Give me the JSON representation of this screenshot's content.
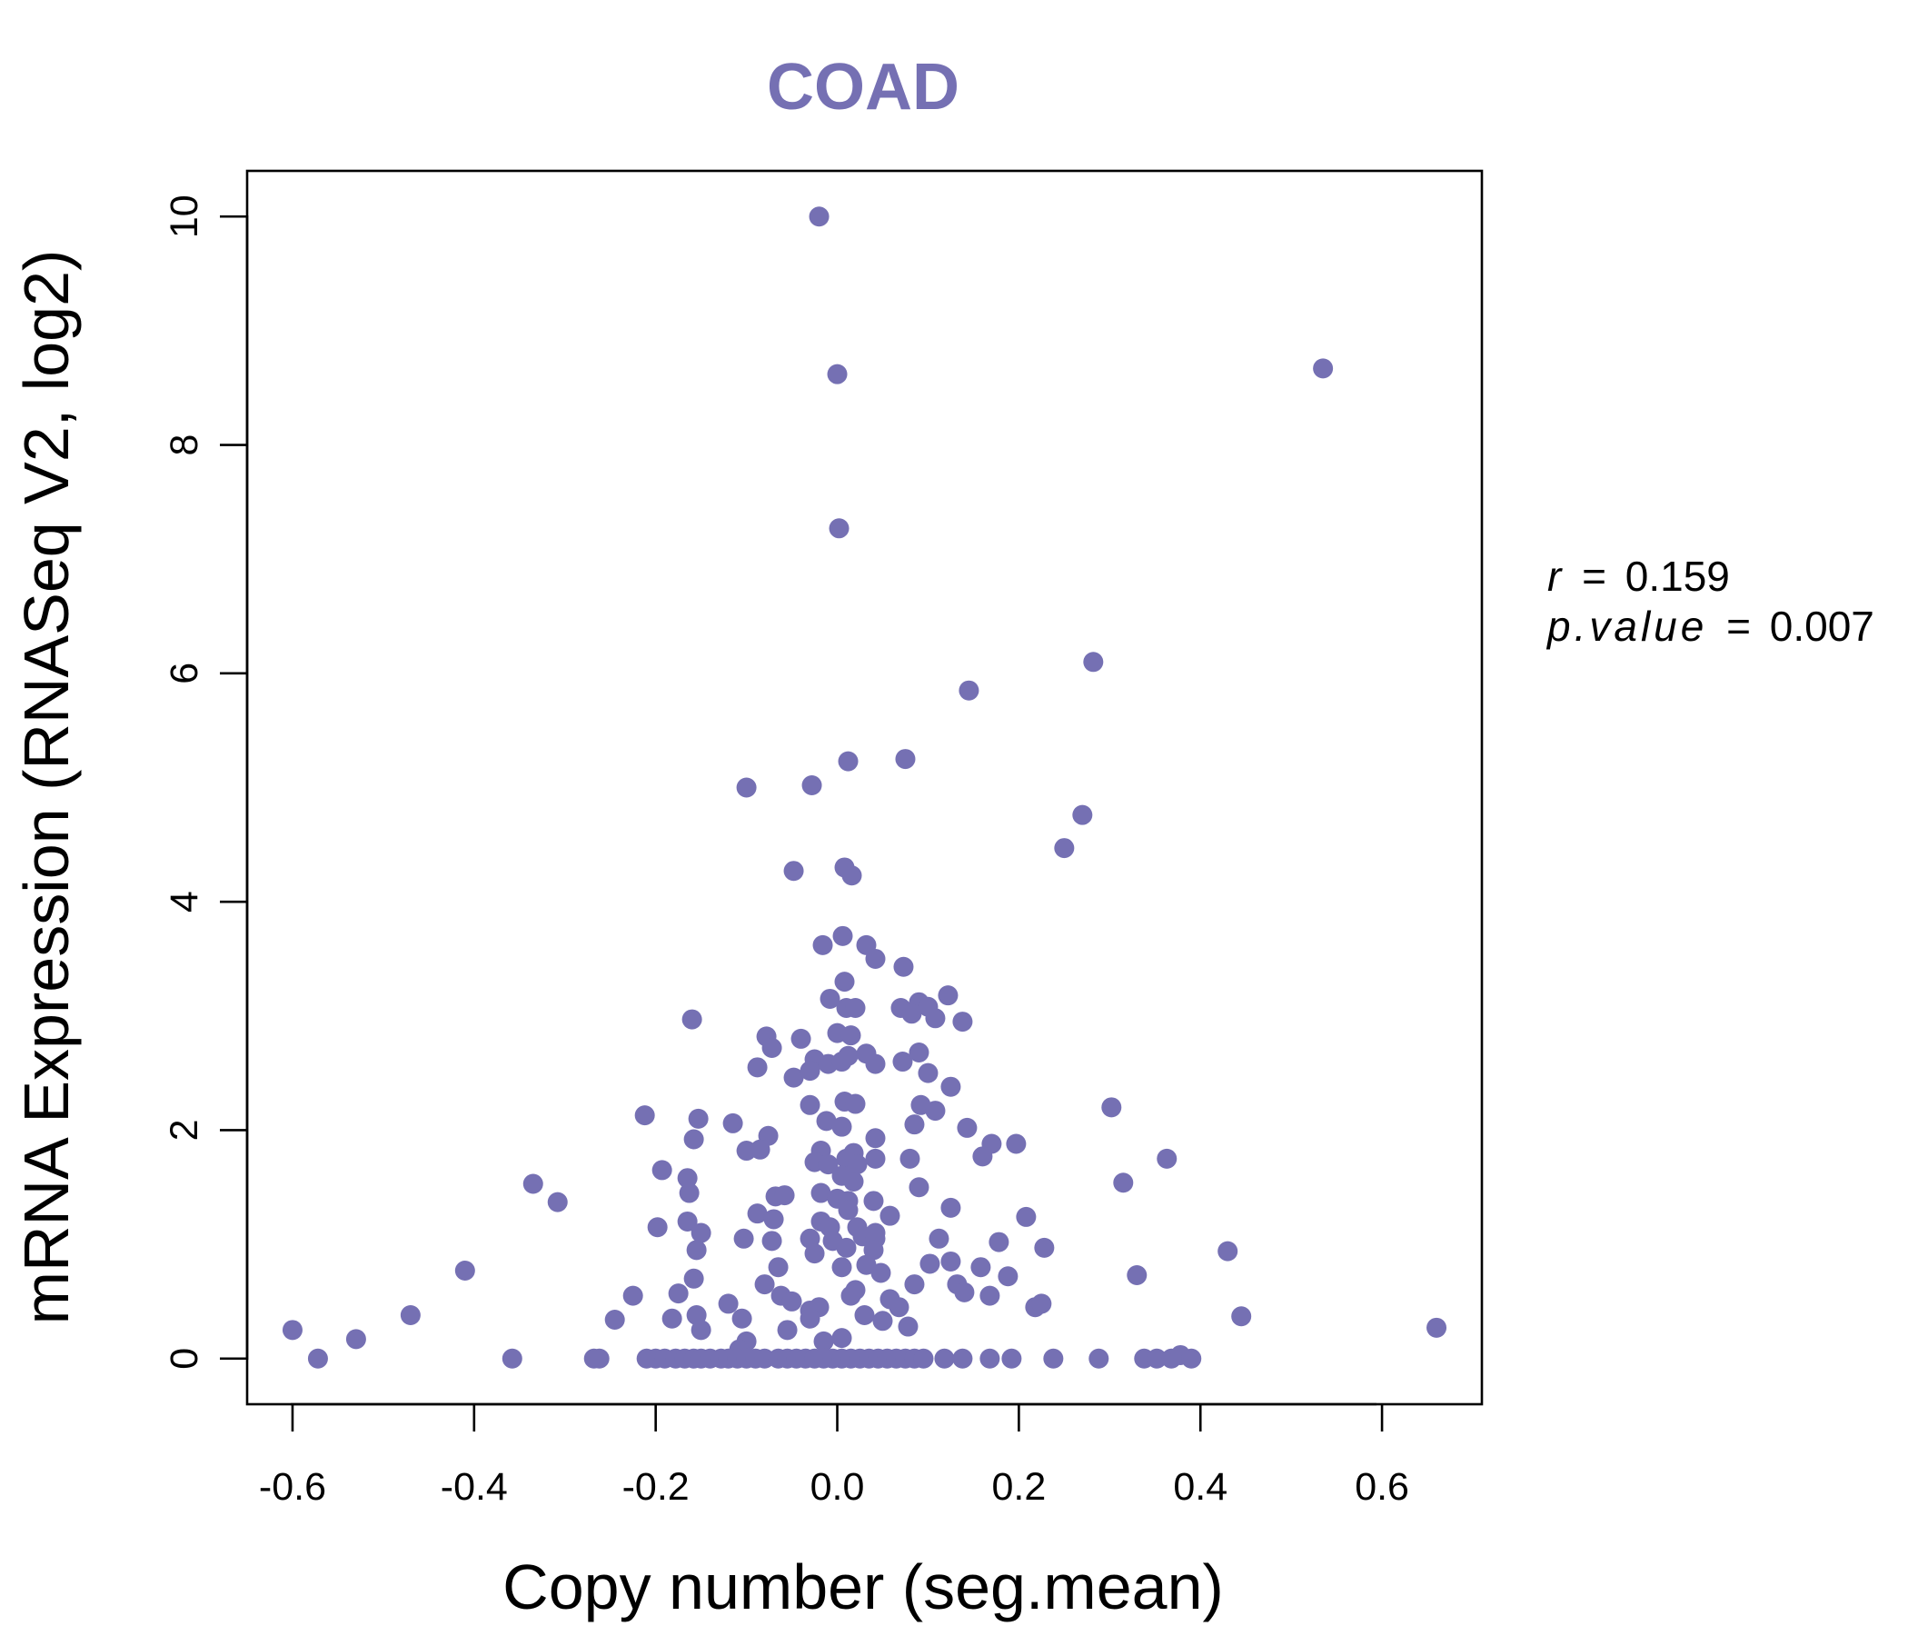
{
  "chart_data": {
    "type": "scatter",
    "title": "COAD",
    "xlabel": "Copy number (seg.mean)",
    "ylabel": "mRNA Expression (RNASeq V2, log2)",
    "xlim": [
      -0.65,
      0.71
    ],
    "ylim": [
      -0.4,
      10.4
    ],
    "x_ticks": [
      "-0.6",
      "-0.4",
      "-0.2",
      "0.0",
      "0.2",
      "0.4",
      "0.6"
    ],
    "x_tick_values": [
      -0.6,
      -0.4,
      -0.2,
      0.0,
      0.2,
      0.4,
      0.6
    ],
    "y_ticks": [
      "0",
      "2",
      "4",
      "6",
      "8",
      "10"
    ],
    "y_tick_values": [
      0,
      2,
      4,
      6,
      8,
      10
    ],
    "grid": false,
    "point_color": "#7570b3",
    "stats": {
      "r_label": "r",
      "r_value": "0.159",
      "p_label": "p.value",
      "p_value": "0.007"
    },
    "points": [
      [
        -0.02,
        10.0
      ],
      [
        0.0,
        8.62
      ],
      [
        0.535,
        8.67
      ],
      [
        0.002,
        7.27
      ],
      [
        0.282,
        6.1
      ],
      [
        0.145,
        5.85
      ],
      [
        0.012,
        5.23
      ],
      [
        0.075,
        5.25
      ],
      [
        -0.1,
        5.0
      ],
      [
        -0.028,
        5.02
      ],
      [
        0.27,
        4.76
      ],
      [
        0.25,
        4.47
      ],
      [
        -0.048,
        4.27
      ],
      [
        0.008,
        4.3
      ],
      [
        0.016,
        4.23
      ],
      [
        -0.016,
        3.62
      ],
      [
        0.006,
        3.7
      ],
      [
        0.032,
        3.62
      ],
      [
        0.042,
        3.5
      ],
      [
        0.073,
        3.43
      ],
      [
        0.008,
        3.3
      ],
      [
        -0.008,
        3.15
      ],
      [
        0.01,
        3.07
      ],
      [
        0.02,
        3.07
      ],
      [
        0.07,
        3.07
      ],
      [
        0.09,
        3.12
      ],
      [
        0.1,
        3.08
      ],
      [
        0.122,
        3.18
      ],
      [
        0.138,
        2.95
      ],
      [
        0.082,
        3.02
      ],
      [
        0.108,
        2.98
      ],
      [
        -0.16,
        2.97
      ],
      [
        -0.078,
        2.82
      ],
      [
        -0.04,
        2.8
      ],
      [
        0.0,
        2.85
      ],
      [
        0.015,
        2.83
      ],
      [
        -0.072,
        2.72
      ],
      [
        -0.025,
        2.62
      ],
      [
        -0.01,
        2.58
      ],
      [
        0.005,
        2.6
      ],
      [
        0.012,
        2.65
      ],
      [
        0.032,
        2.67
      ],
      [
        0.042,
        2.58
      ],
      [
        0.072,
        2.6
      ],
      [
        0.09,
        2.68
      ],
      [
        0.1,
        2.5
      ],
      [
        -0.088,
        2.55
      ],
      [
        -0.048,
        2.46
      ],
      [
        -0.03,
        2.52
      ],
      [
        0.125,
        2.38
      ],
      [
        -0.03,
        2.22
      ],
      [
        0.008,
        2.25
      ],
      [
        0.02,
        2.23
      ],
      [
        0.092,
        2.22
      ],
      [
        0.108,
        2.17
      ],
      [
        0.302,
        2.2
      ],
      [
        -0.212,
        2.13
      ],
      [
        -0.153,
        2.1
      ],
      [
        -0.115,
        2.06
      ],
      [
        -0.012,
        2.08
      ],
      [
        0.005,
        2.03
      ],
      [
        0.085,
        2.05
      ],
      [
        0.143,
        2.02
      ],
      [
        -0.158,
        1.92
      ],
      [
        -0.076,
        1.95
      ],
      [
        -0.1,
        1.82
      ],
      [
        -0.085,
        1.83
      ],
      [
        -0.018,
        1.82
      ],
      [
        0.018,
        1.8
      ],
      [
        0.042,
        1.93
      ],
      [
        0.17,
        1.88
      ],
      [
        0.197,
        1.88
      ],
      [
        0.08,
        1.75
      ],
      [
        0.16,
        1.77
      ],
      [
        0.363,
        1.75
      ],
      [
        -0.025,
        1.72
      ],
      [
        -0.01,
        1.7
      ],
      [
        0.01,
        1.75
      ],
      [
        0.022,
        1.7
      ],
      [
        0.042,
        1.75
      ],
      [
        -0.193,
        1.65
      ],
      [
        -0.165,
        1.58
      ],
      [
        0.005,
        1.6
      ],
      [
        0.018,
        1.55
      ],
      [
        0.315,
        1.54
      ],
      [
        -0.335,
        1.53
      ],
      [
        -0.308,
        1.37
      ],
      [
        -0.163,
        1.45
      ],
      [
        -0.068,
        1.42
      ],
      [
        -0.058,
        1.43
      ],
      [
        -0.018,
        1.45
      ],
      [
        0.0,
        1.4
      ],
      [
        0.04,
        1.38
      ],
      [
        0.09,
        1.5
      ],
      [
        0.012,
        1.38
      ],
      [
        -0.088,
        1.27
      ],
      [
        -0.07,
        1.22
      ],
      [
        -0.018,
        1.2
      ],
      [
        0.012,
        1.3
      ],
      [
        0.058,
        1.25
      ],
      [
        0.125,
        1.32
      ],
      [
        -0.198,
        1.15
      ],
      [
        -0.165,
        1.2
      ],
      [
        -0.15,
        1.1
      ],
      [
        -0.008,
        1.15
      ],
      [
        0.022,
        1.15
      ],
      [
        0.042,
        1.1
      ],
      [
        0.208,
        1.24
      ],
      [
        -0.103,
        1.05
      ],
      [
        -0.072,
        1.03
      ],
      [
        -0.03,
        1.05
      ],
      [
        -0.005,
        1.03
      ],
      [
        0.028,
        1.07
      ],
      [
        0.042,
        1.05
      ],
      [
        0.112,
        1.05
      ],
      [
        0.178,
        1.02
      ],
      [
        -0.155,
        0.95
      ],
      [
        -0.025,
        0.92
      ],
      [
        0.01,
        0.97
      ],
      [
        0.04,
        0.95
      ],
      [
        0.228,
        0.97
      ],
      [
        0.43,
        0.94
      ],
      [
        -0.065,
        0.8
      ],
      [
        0.005,
        0.8
      ],
      [
        0.032,
        0.82
      ],
      [
        0.048,
        0.75
      ],
      [
        0.102,
        0.83
      ],
      [
        0.125,
        0.85
      ],
      [
        0.158,
        0.8
      ],
      [
        0.188,
        0.72
      ],
      [
        -0.41,
        0.77
      ],
      [
        -0.158,
        0.7
      ],
      [
        -0.08,
        0.65
      ],
      [
        -0.062,
        0.55
      ],
      [
        -0.05,
        0.5
      ],
      [
        0.02,
        0.6
      ],
      [
        0.085,
        0.65
      ],
      [
        0.132,
        0.65
      ],
      [
        0.33,
        0.73
      ],
      [
        -0.225,
        0.55
      ],
      [
        -0.175,
        0.57
      ],
      [
        -0.12,
        0.48
      ],
      [
        -0.03,
        0.42
      ],
      [
        -0.02,
        0.45
      ],
      [
        0.015,
        0.55
      ],
      [
        0.058,
        0.52
      ],
      [
        0.068,
        0.45
      ],
      [
        0.14,
        0.58
      ],
      [
        0.168,
        0.55
      ],
      [
        0.218,
        0.45
      ],
      [
        0.225,
        0.48
      ],
      [
        -0.47,
        0.38
      ],
      [
        -0.245,
        0.34
      ],
      [
        -0.182,
        0.35
      ],
      [
        -0.155,
        0.38
      ],
      [
        -0.105,
        0.35
      ],
      [
        -0.03,
        0.35
      ],
      [
        0.03,
        0.38
      ],
      [
        0.05,
        0.33
      ],
      [
        0.078,
        0.28
      ],
      [
        0.445,
        0.37
      ],
      [
        -0.6,
        0.25
      ],
      [
        -0.53,
        0.17
      ],
      [
        -0.15,
        0.25
      ],
      [
        -0.055,
        0.25
      ],
      [
        -0.015,
        0.15
      ],
      [
        0.005,
        0.18
      ],
      [
        0.66,
        0.27
      ],
      [
        -0.1,
        0.15
      ],
      [
        -0.108,
        0.08
      ],
      [
        -0.572,
        0.0
      ],
      [
        -0.358,
        0.0
      ],
      [
        -0.268,
        0.0
      ],
      [
        -0.262,
        0.0
      ],
      [
        -0.21,
        0.0
      ],
      [
        -0.2,
        0.0
      ],
      [
        -0.19,
        0.0
      ],
      [
        -0.178,
        0.0
      ],
      [
        -0.168,
        0.0
      ],
      [
        -0.158,
        0.0
      ],
      [
        -0.15,
        0.0
      ],
      [
        -0.14,
        0.0
      ],
      [
        -0.128,
        0.0
      ],
      [
        -0.12,
        0.0
      ],
      [
        -0.11,
        0.0
      ],
      [
        -0.1,
        0.0
      ],
      [
        -0.09,
        0.0
      ],
      [
        -0.08,
        0.0
      ],
      [
        -0.065,
        0.0
      ],
      [
        -0.055,
        0.0
      ],
      [
        -0.045,
        0.0
      ],
      [
        -0.035,
        0.0
      ],
      [
        -0.025,
        0.0
      ],
      [
        -0.015,
        0.0
      ],
      [
        -0.005,
        0.0
      ],
      [
        0.005,
        0.0
      ],
      [
        0.015,
        0.0
      ],
      [
        0.025,
        0.0
      ],
      [
        0.035,
        0.0
      ],
      [
        0.045,
        0.0
      ],
      [
        0.055,
        0.0
      ],
      [
        0.065,
        0.0
      ],
      [
        0.075,
        0.0
      ],
      [
        0.085,
        0.0
      ],
      [
        0.095,
        0.0
      ],
      [
        0.118,
        0.0
      ],
      [
        0.138,
        0.0
      ],
      [
        0.168,
        0.0
      ],
      [
        0.192,
        0.0
      ],
      [
        0.238,
        0.0
      ],
      [
        0.288,
        0.0
      ],
      [
        0.338,
        0.0
      ],
      [
        0.352,
        0.0
      ],
      [
        0.368,
        0.0
      ],
      [
        0.378,
        0.03
      ],
      [
        0.39,
        0.0
      ]
    ]
  }
}
